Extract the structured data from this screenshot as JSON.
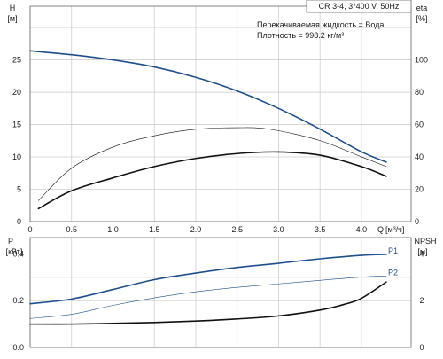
{
  "header": {
    "model": "CR 3-4, 3*400 V, 50Hz",
    "liquid": "Перекачиваемая жидкость = Вода",
    "density": "Плотность = 998.2 кг/м³"
  },
  "colors": {
    "blue": "#1f4e8c",
    "black": "#111111",
    "grid": "#cfcfcf"
  },
  "chart_data": [
    {
      "type": "line",
      "panel": "head-efficiency",
      "x_axis": {
        "label": "Q",
        "unit": "[м³/ч]",
        "ticks": [
          "0",
          "0.5",
          "1.0",
          "1.5",
          "2.0",
          "2.5",
          "3.0",
          "3.5",
          "4.0"
        ],
        "range": [
          0,
          4.6
        ]
      },
      "y_left": {
        "label": "H",
        "unit": "[м]",
        "ticks": [
          "0",
          "5",
          "10",
          "15",
          "20",
          "25"
        ],
        "range": [
          0,
          33.3
        ]
      },
      "y_right": {
        "label": "eta",
        "unit": "[%]",
        "ticks": [
          "0",
          "20",
          "40",
          "60",
          "80",
          "100"
        ],
        "range": [
          0,
          133
        ]
      },
      "grid": true,
      "series": [
        {
          "id": "H",
          "axis": "left",
          "color": "#1f4e8c",
          "width": 1.6,
          "x": [
            0,
            0.5,
            1.0,
            1.5,
            2.0,
            2.5,
            3.0,
            3.5,
            4.0,
            4.3
          ],
          "y": [
            26.4,
            25.8,
            25.0,
            23.9,
            22.3,
            20.2,
            17.5,
            14.3,
            10.8,
            9.2
          ]
        },
        {
          "id": "eta-upper",
          "axis": "right",
          "color": "#111111",
          "width": 0.6,
          "x": [
            0.1,
            0.5,
            1.0,
            1.5,
            2.0,
            2.5,
            2.9,
            3.5,
            4.0,
            4.3
          ],
          "y": [
            13,
            33,
            46,
            53,
            57,
            58,
            57,
            50,
            40,
            34
          ]
        },
        {
          "id": "eta-lower",
          "axis": "right",
          "color": "#111111",
          "width": 1.6,
          "x": [
            0.1,
            0.5,
            1.0,
            1.5,
            2.0,
            2.5,
            3.0,
            3.5,
            4.0,
            4.3
          ],
          "y": [
            8,
            19,
            27,
            34,
            39,
            42,
            43,
            41,
            34,
            28
          ]
        }
      ]
    },
    {
      "type": "line",
      "panel": "power-npsh",
      "x_axis": {
        "ticks": [],
        "range": [
          0,
          4.6
        ]
      },
      "y_left": {
        "label": "P",
        "unit": "[кВт]",
        "ticks": [
          "0.0",
          "0.2",
          "0.4"
        ],
        "range": [
          0,
          0.47
        ]
      },
      "y_right": {
        "label": "NPSH",
        "unit": "[м]",
        "ticks": [
          "0",
          "2",
          "4"
        ],
        "range": [
          0,
          4.7
        ]
      },
      "grid": true,
      "series": [
        {
          "id": "P1",
          "name": "P1",
          "axis": "left",
          "color": "#1f4e8c",
          "width": 1.6,
          "x": [
            0,
            0.5,
            1.0,
            1.5,
            2.0,
            2.5,
            3.0,
            3.5,
            4.0,
            4.3
          ],
          "y": [
            0.187,
            0.207,
            0.248,
            0.29,
            0.318,
            0.342,
            0.36,
            0.379,
            0.394,
            0.398
          ]
        },
        {
          "id": "P2",
          "name": "P2",
          "axis": "left",
          "color": "#1f4e8c",
          "width": 0.6,
          "x": [
            0,
            0.5,
            1.0,
            1.5,
            2.0,
            2.5,
            3.0,
            3.5,
            4.0,
            4.3
          ],
          "y": [
            0.124,
            0.142,
            0.18,
            0.212,
            0.238,
            0.257,
            0.272,
            0.287,
            0.301,
            0.306
          ]
        },
        {
          "id": "NPSH",
          "axis": "right",
          "color": "#111111",
          "width": 1.6,
          "x": [
            0,
            0.5,
            1.0,
            1.5,
            2.0,
            2.5,
            3.0,
            3.5,
            3.8,
            4.0,
            4.3
          ],
          "y": [
            1.0,
            1.0,
            1.03,
            1.07,
            1.13,
            1.22,
            1.35,
            1.6,
            1.85,
            2.1,
            2.8
          ]
        }
      ]
    }
  ]
}
